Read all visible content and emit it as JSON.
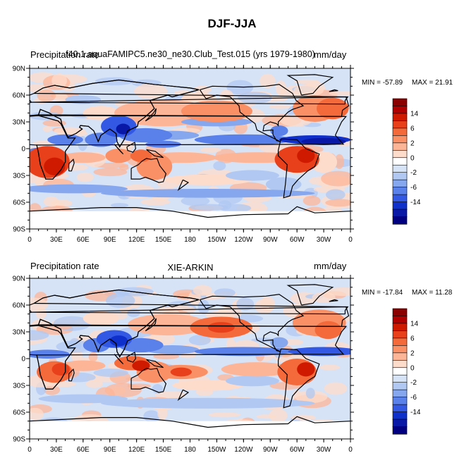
{
  "title": "DJF-JJA",
  "chart_data": [
    {
      "type": "heatmap",
      "title": "Precipitation rate",
      "left_label": "Precipitation rate",
      "center_title": "f40.1.aquaFAMIPC5.ne30_ne30.Club_Test.015 (yrs 1979-1980)",
      "units": "mm/day",
      "min_label": "MIN = -57.89",
      "max_label": "MAX =  21.91",
      "x_ticks": [
        "0",
        "30E",
        "60E",
        "90E",
        "120E",
        "150E",
        "180",
        "150W",
        "120W",
        "90W",
        "60W",
        "30W",
        "0"
      ],
      "y_ticks": [
        "90N",
        "60N",
        "30N",
        "0",
        "30S",
        "60S",
        "90S"
      ],
      "x_range": [
        0,
        360
      ],
      "y_range": [
        -90,
        90
      ],
      "colorbar_labels": [
        "14",
        "6",
        "2",
        "0",
        "-2",
        "-6",
        "-14"
      ]
    },
    {
      "type": "heatmap",
      "title": "XIE-ARKIN",
      "left_label": "Precipitation rate",
      "center_title": "XIE-ARKIN",
      "units": "mm/day",
      "min_label": "MIN = -17.84",
      "max_label": "MAX =  11.28",
      "x_ticks": [
        "0",
        "30E",
        "60E",
        "90E",
        "120E",
        "150E",
        "180",
        "150W",
        "120W",
        "90W",
        "60W",
        "30W",
        "0"
      ],
      "y_ticks": [
        "90N",
        "60N",
        "30N",
        "0",
        "30S",
        "60S",
        "90S"
      ],
      "x_range": [
        0,
        360
      ],
      "y_range": [
        -90,
        90
      ],
      "colorbar_labels": [
        "14",
        "6",
        "2",
        "0",
        "-2",
        "-6",
        "-14"
      ]
    }
  ],
  "palette": [
    "#8b0000",
    "#b00000",
    "#d01a00",
    "#e8401a",
    "#f46a3a",
    "#fa9066",
    "#fdb598",
    "#fedccb",
    "#ffffff",
    "#d6e3f7",
    "#b0c8f2",
    "#86a7ee",
    "#5a80ea",
    "#3258e4",
    "#1030cc",
    "#0a18a8",
    "#000080"
  ]
}
